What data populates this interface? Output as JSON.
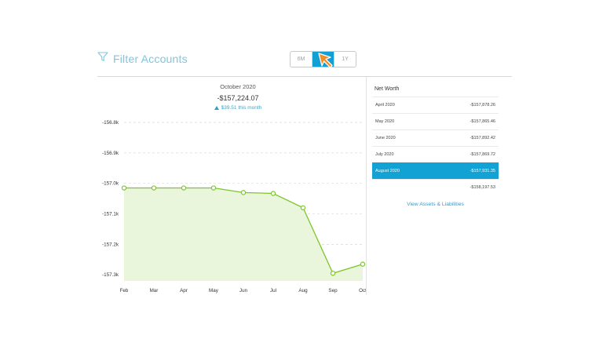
{
  "filter": {
    "label": "Filter Accounts",
    "icon": "filter-icon"
  },
  "range_toggle": {
    "options": [
      "6M",
      "",
      "1Y"
    ],
    "active_index": 1
  },
  "summary": {
    "month": "October  2020",
    "value": "-$157,224.07",
    "change": "$39.51 this month"
  },
  "chart_data": {
    "type": "area",
    "x": [
      "Feb",
      "Mar",
      "Apr",
      "May",
      "Jun",
      "Jul",
      "Aug",
      "Sep",
      "Oct"
    ],
    "y_ticks": [
      "-156.8k",
      "-156.9k",
      "-157.0k",
      "-157.1k",
      "-157.2k",
      "-157.3k"
    ],
    "series": [
      {
        "values": [
          -157.015,
          -157.015,
          -157.015,
          -157.015,
          -157.03,
          -157.033,
          -157.08,
          -157.295,
          -157.265
        ]
      }
    ],
    "ylim": [
      -157.32,
      -156.8
    ],
    "grid": true,
    "line_color": "#7cc62a",
    "fill_color": "#eaf6dc"
  },
  "net_worth": {
    "title": "Net Worth",
    "rows": [
      {
        "month": "April  2020",
        "value": "-$157,878.26"
      },
      {
        "month": "May  2020",
        "value": "-$157,865.46"
      },
      {
        "month": "June  2020",
        "value": "-$157,892.42"
      },
      {
        "month": "July  2020",
        "value": "-$157,869.72"
      },
      {
        "month": "August  2020",
        "value": "-$157,931.35",
        "active": true
      },
      {
        "month": "",
        "value": "-$158,197.53"
      }
    ],
    "link": "View Assets & Liabilities"
  }
}
